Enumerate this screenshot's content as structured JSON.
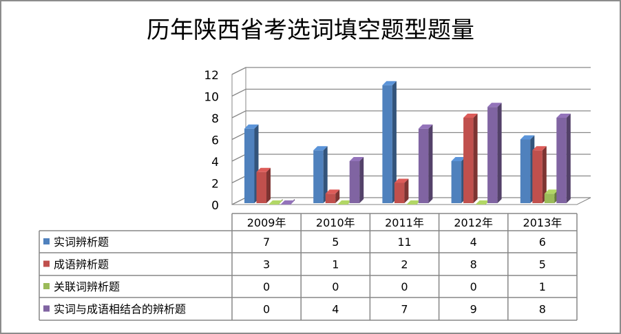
{
  "chart_data": {
    "type": "bar",
    "title": "历年陕西省考选词填空题型题量",
    "categories": [
      "2009年",
      "2010年",
      "2011年",
      "2012年",
      "2013年"
    ],
    "series": [
      {
        "name": "实词辨析题",
        "values": [
          7,
          5,
          11,
          4,
          6
        ],
        "color": "#4f81bd"
      },
      {
        "name": "成语辨析题",
        "values": [
          3,
          1,
          2,
          8,
          5
        ],
        "color": "#c0504d"
      },
      {
        "name": "关联词辨析题",
        "values": [
          0,
          0,
          0,
          0,
          1
        ],
        "color": "#9bbb59"
      },
      {
        "name": "实词与成语相结合的辨析题",
        "values": [
          0,
          4,
          7,
          9,
          8
        ],
        "color": "#8064a2"
      }
    ],
    "ylim": [
      0,
      12
    ],
    "yticks": [
      "0",
      "2",
      "4",
      "6",
      "8",
      "10",
      "12"
    ],
    "grid": true,
    "three_d": true,
    "legend": "data-table"
  }
}
